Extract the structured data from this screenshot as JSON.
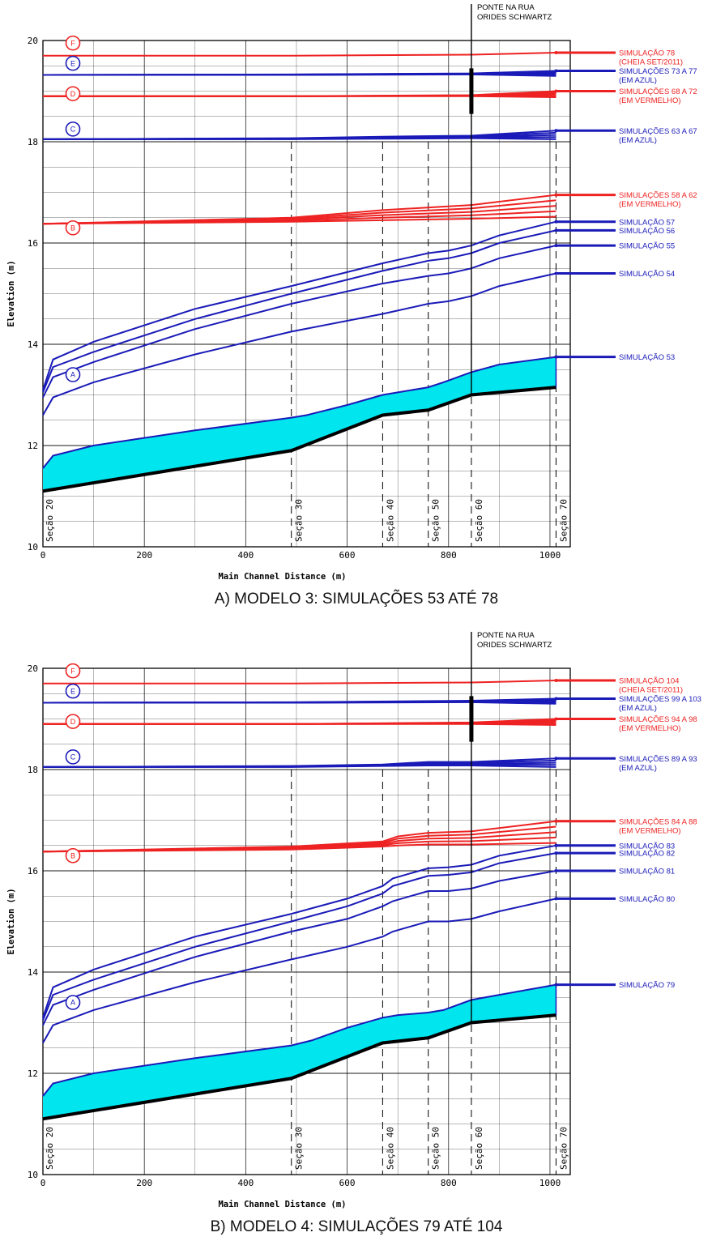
{
  "colors": {
    "red": "#ee2222",
    "blue": "#1a1ab8",
    "water": "#00e5ee",
    "bed": "#000000",
    "grid": "#000000"
  },
  "chart_data": [
    {
      "type": "line",
      "caption": "A) MODELO 3: SIMULAÇÕES 53 ATÉ 78",
      "xlabel": "Main Channel Distance (m)",
      "ylabel": "Elevation (m)",
      "xlim": [
        0,
        1040
      ],
      "ylim": [
        10,
        20
      ],
      "xticks": [
        0,
        200,
        400,
        600,
        800,
        1000
      ],
      "yticks": [
        10,
        12,
        14,
        16,
        18,
        20
      ],
      "bridge": {
        "x": 845,
        "label_line1": "PONTE NA RUA",
        "label_line2": "ORIDES SCHWARTZ"
      },
      "sections": [
        {
          "label": "Seção 20",
          "x": 5
        },
        {
          "label": "Seção 30",
          "x": 490
        },
        {
          "label": "Seção 40",
          "x": 670
        },
        {
          "label": "Seção 50",
          "x": 760
        },
        {
          "label": "Seção 60",
          "x": 845
        },
        {
          "label": "Seção 70",
          "x": 1012
        }
      ],
      "bed": {
        "x": [
          0,
          490,
          670,
          760,
          845,
          1012
        ],
        "y": [
          11.1,
          11.9,
          12.6,
          12.7,
          13.0,
          13.15
        ]
      },
      "group_markers": [
        {
          "letter": "A",
          "y": 13.4,
          "color": "blue"
        },
        {
          "letter": "B",
          "y": 16.3,
          "color": "red"
        },
        {
          "letter": "C",
          "y": 18.25,
          "color": "blue"
        },
        {
          "letter": "D",
          "y": 18.95,
          "color": "red"
        },
        {
          "letter": "E",
          "y": 19.55,
          "color": "blue"
        },
        {
          "letter": "F",
          "y": 19.95,
          "color": "red"
        }
      ],
      "series": [
        {
          "name": "SIMULAÇÃO 53",
          "sub": "",
          "color": "blue",
          "shade": true,
          "x": [
            0,
            20,
            100,
            300,
            490,
            520,
            600,
            670,
            760,
            790,
            845,
            900,
            1012
          ],
          "y": [
            11.55,
            11.8,
            12.0,
            12.3,
            12.55,
            12.6,
            12.8,
            13.0,
            13.15,
            13.25,
            13.45,
            13.6,
            13.75
          ]
        },
        {
          "name": "SIMULAÇÃO 54",
          "sub": "",
          "color": "blue",
          "x": [
            0,
            20,
            100,
            300,
            490,
            670,
            760,
            800,
            845,
            900,
            1012
          ],
          "y": [
            12.6,
            12.95,
            13.25,
            13.8,
            14.25,
            14.6,
            14.8,
            14.85,
            14.95,
            15.15,
            15.4
          ]
        },
        {
          "name": "SIMULAÇÃO 55",
          "sub": "",
          "color": "blue",
          "x": [
            0,
            20,
            100,
            300,
            490,
            670,
            760,
            800,
            845,
            900,
            1012
          ],
          "y": [
            12.95,
            13.35,
            13.65,
            14.3,
            14.8,
            15.2,
            15.35,
            15.4,
            15.5,
            15.7,
            15.95
          ]
        },
        {
          "name": "SIMULAÇÃO 56",
          "sub": "",
          "color": "blue",
          "x": [
            0,
            20,
            100,
            300,
            490,
            670,
            760,
            800,
            845,
            900,
            1012
          ],
          "y": [
            13.05,
            13.55,
            13.85,
            14.5,
            15.0,
            15.45,
            15.65,
            15.7,
            15.8,
            16.0,
            16.25
          ]
        },
        {
          "name": "SIMULAÇÃO 57",
          "sub": "",
          "color": "blue",
          "x": [
            0,
            20,
            100,
            300,
            490,
            670,
            760,
            800,
            845,
            900,
            1012
          ],
          "y": [
            13.1,
            13.7,
            14.05,
            14.7,
            15.15,
            15.6,
            15.8,
            15.85,
            15.95,
            16.15,
            16.42
          ]
        },
        {
          "name": "SIMULAÇÕES 58 A 62",
          "sub": "(EM VERMELHO)",
          "color": "red",
          "bundle": 5,
          "x": [
            0,
            490,
            670,
            845,
            1012
          ],
          "y": [
            16.38,
            16.42,
            16.45,
            16.48,
            16.52
          ],
          "y_top": [
            16.38,
            16.5,
            16.65,
            16.75,
            16.95
          ]
        },
        {
          "name": "SIMULAÇÕES 63 A 67",
          "sub": "(EM AZUL)",
          "color": "blue",
          "bundle": 5,
          "x": [
            0,
            490,
            670,
            845,
            1012
          ],
          "y": [
            18.05,
            18.05,
            18.06,
            18.07,
            18.05
          ],
          "y_top": [
            18.05,
            18.07,
            18.1,
            18.12,
            18.22
          ]
        },
        {
          "name": "SIMULAÇÕES 68 A 72",
          "sub": "(EM VERMELHO)",
          "color": "red",
          "bundle": 5,
          "x": [
            0,
            490,
            845,
            1012
          ],
          "y": [
            18.9,
            18.9,
            18.9,
            18.88
          ],
          "y_top": [
            18.9,
            18.9,
            18.92,
            19.0
          ]
        },
        {
          "name": "SIMULAÇÕES 73 A 77",
          "sub": "(EM AZUL)",
          "color": "blue",
          "bundle": 5,
          "x": [
            0,
            490,
            845,
            1012
          ],
          "y": [
            19.32,
            19.32,
            19.33,
            19.3
          ],
          "y_top": [
            19.32,
            19.33,
            19.35,
            19.4
          ]
        },
        {
          "name": "SIMULAÇÃO 78",
          "sub": "(CHEIA SET/2011)",
          "color": "red",
          "x": [
            0,
            490,
            845,
            1012
          ],
          "y": [
            19.7,
            19.7,
            19.72,
            19.76
          ]
        }
      ]
    },
    {
      "type": "line",
      "caption": "B) MODELO 4: SIMULAÇÕES 79 ATÉ 104",
      "xlabel": "Main Channel Distance (m)",
      "ylabel": "Elevation (m)",
      "xlim": [
        0,
        1040
      ],
      "ylim": [
        10,
        20
      ],
      "xticks": [
        0,
        200,
        400,
        600,
        800,
        1000
      ],
      "yticks": [
        10,
        12,
        14,
        16,
        18,
        20
      ],
      "bridge": {
        "x": 845,
        "label_line1": "PONTE NA RUA",
        "label_line2": "ORIDES SCHWARTZ"
      },
      "sections": [
        {
          "label": "Seção 20",
          "x": 5
        },
        {
          "label": "Seção 30",
          "x": 490
        },
        {
          "label": "Seção 40",
          "x": 670
        },
        {
          "label": "Seção 50",
          "x": 760
        },
        {
          "label": "Seção 60",
          "x": 845
        },
        {
          "label": "Seção 70",
          "x": 1012
        }
      ],
      "bed": {
        "x": [
          0,
          490,
          670,
          760,
          845,
          1012
        ],
        "y": [
          11.1,
          11.9,
          12.6,
          12.7,
          13.0,
          13.15
        ]
      },
      "group_markers": [
        {
          "letter": "A",
          "y": 13.4,
          "color": "blue"
        },
        {
          "letter": "B",
          "y": 16.3,
          "color": "red"
        },
        {
          "letter": "C",
          "y": 18.25,
          "color": "blue"
        },
        {
          "letter": "D",
          "y": 18.95,
          "color": "red"
        },
        {
          "letter": "E",
          "y": 19.55,
          "color": "blue"
        },
        {
          "letter": "F",
          "y": 19.95,
          "color": "red"
        }
      ],
      "series": [
        {
          "name": "SIMULAÇÃO 79",
          "sub": "",
          "color": "blue",
          "shade": true,
          "x": [
            0,
            20,
            100,
            300,
            490,
            530,
            600,
            670,
            700,
            760,
            790,
            845,
            900,
            1012
          ],
          "y": [
            11.55,
            11.8,
            12.0,
            12.3,
            12.55,
            12.65,
            12.9,
            13.1,
            13.15,
            13.2,
            13.25,
            13.45,
            13.55,
            13.75
          ]
        },
        {
          "name": "SIMULAÇÃO 80",
          "sub": "",
          "color": "blue",
          "x": [
            0,
            20,
            100,
            300,
            490,
            600,
            670,
            690,
            760,
            800,
            845,
            900,
            1012
          ],
          "y": [
            12.6,
            12.95,
            13.25,
            13.8,
            14.25,
            14.5,
            14.7,
            14.8,
            15.0,
            15.0,
            15.05,
            15.2,
            15.45
          ]
        },
        {
          "name": "SIMULAÇÃO 81",
          "sub": "",
          "color": "blue",
          "x": [
            0,
            20,
            100,
            300,
            490,
            600,
            670,
            690,
            760,
            800,
            845,
            900,
            1012
          ],
          "y": [
            12.95,
            13.35,
            13.65,
            14.3,
            14.8,
            15.05,
            15.3,
            15.4,
            15.6,
            15.6,
            15.65,
            15.8,
            16.0
          ]
        },
        {
          "name": "SIMULAÇÃO 82",
          "sub": "",
          "color": "blue",
          "x": [
            0,
            20,
            100,
            300,
            490,
            600,
            670,
            690,
            760,
            800,
            845,
            900,
            1012
          ],
          "y": [
            13.05,
            13.55,
            13.85,
            14.5,
            15.0,
            15.3,
            15.55,
            15.7,
            15.9,
            15.92,
            15.97,
            16.15,
            16.35
          ]
        },
        {
          "name": "SIMULAÇÃO 83",
          "sub": "",
          "color": "blue",
          "x": [
            0,
            20,
            100,
            300,
            490,
            600,
            670,
            690,
            760,
            800,
            845,
            900,
            1012
          ],
          "y": [
            13.1,
            13.7,
            14.05,
            14.7,
            15.15,
            15.45,
            15.7,
            15.85,
            16.05,
            16.07,
            16.12,
            16.3,
            16.5
          ]
        },
        {
          "name": "SIMULAÇÕES 84 A 88",
          "sub": "(EM VERMELHO)",
          "color": "red",
          "bundle": 5,
          "x": [
            0,
            490,
            670,
            700,
            760,
            845,
            1012
          ],
          "y": [
            16.38,
            16.42,
            16.48,
            16.5,
            16.52,
            16.52,
            16.55
          ],
          "y_top": [
            16.38,
            16.48,
            16.58,
            16.68,
            16.75,
            16.78,
            16.98
          ]
        },
        {
          "name": "SIMULAÇÕES 89 A 93",
          "sub": "(EM AZUL)",
          "color": "blue",
          "bundle": 5,
          "x": [
            0,
            490,
            670,
            760,
            845,
            1012
          ],
          "y": [
            18.05,
            18.05,
            18.07,
            18.08,
            18.08,
            18.05
          ],
          "y_top": [
            18.05,
            18.07,
            18.1,
            18.15,
            18.15,
            18.22
          ]
        },
        {
          "name": "SIMULAÇÕES 94 A 98",
          "sub": "(EM VERMELHO)",
          "color": "red",
          "bundle": 5,
          "x": [
            0,
            490,
            845,
            1012
          ],
          "y": [
            18.9,
            18.9,
            18.9,
            18.88
          ],
          "y_top": [
            18.9,
            18.9,
            18.93,
            19.0
          ]
        },
        {
          "name": "SIMULAÇÕES 99 A 103",
          "sub": "(EM AZUL)",
          "color": "blue",
          "bundle": 5,
          "x": [
            0,
            490,
            845,
            1012
          ],
          "y": [
            19.32,
            19.32,
            19.33,
            19.3
          ],
          "y_top": [
            19.32,
            19.33,
            19.36,
            19.4
          ]
        },
        {
          "name": "SIMULAÇÃO 104",
          "sub": "(CHEIA SET/2011)",
          "color": "red",
          "x": [
            0,
            490,
            845,
            1012
          ],
          "y": [
            19.7,
            19.7,
            19.72,
            19.76
          ]
        }
      ]
    }
  ]
}
